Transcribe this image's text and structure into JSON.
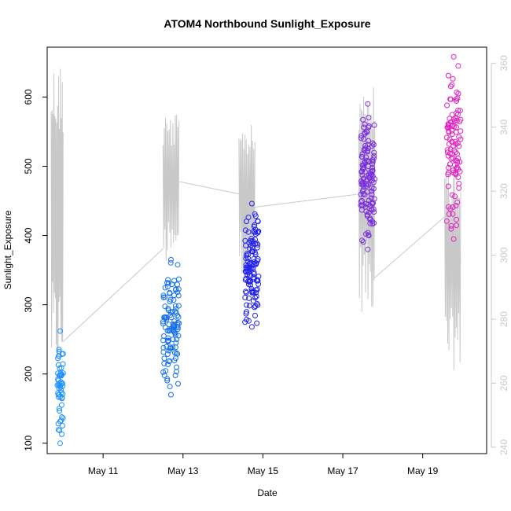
{
  "chart_data": {
    "type": "scatter",
    "title": "ATOM4 Northbound Sunlight_Exposure",
    "xlabel": "Date",
    "ylabel": "Sunlight_Exposure",
    "x_ticks": [
      {
        "day": 11,
        "label": "May 11"
      },
      {
        "day": 13,
        "label": "May 13"
      },
      {
        "day": 15,
        "label": "May 15"
      },
      {
        "day": 17,
        "label": "May 17"
      },
      {
        "day": 19,
        "label": "May 19"
      }
    ],
    "xlim": [
      9.6,
      20.6
    ],
    "ylim": [
      85,
      672
    ],
    "y_ticks": [
      100,
      200,
      300,
      400,
      500,
      600
    ],
    "secondary_axis": {
      "ylim": [
        238,
        365
      ],
      "ticks": [
        240,
        260,
        280,
        300,
        320,
        340,
        360
      ],
      "color": "#c8c8c8",
      "description": "grey trace on right axis"
    },
    "point_clusters": [
      {
        "name": "May 10",
        "x_range": [
          9.85,
          10.0
        ],
        "y_min": 100,
        "y_max": 262,
        "color": "#1E90FF",
        "count": 55
      },
      {
        "name": "May 12-13",
        "x_range": [
          12.5,
          12.9
        ],
        "y_min": 170,
        "y_max": 365,
        "color": "#1570EE",
        "count": 110
      },
      {
        "name": "May 14-15",
        "x_range": [
          14.55,
          14.9
        ],
        "y_min": 268,
        "y_max": 446,
        "color": "#2020F0",
        "count": 120
      },
      {
        "name": "May 17",
        "x_range": [
          17.45,
          17.8
        ],
        "y_min": 380,
        "y_max": 590,
        "color": "#7B2BE2",
        "count": 125
      },
      {
        "name": "May 19-20",
        "x_range": [
          19.6,
          19.95
        ],
        "y_min": 395,
        "y_max": 658,
        "color": "#E020C0",
        "count": 100
      }
    ],
    "grey_trace_segments": [
      {
        "x_range": [
          9.7,
          10.0
        ],
        "y2_min": 262,
        "y2_max": 361
      },
      {
        "x_range": [
          12.5,
          12.9
        ],
        "y2_min": 296,
        "y2_max": 345
      },
      {
        "x_range": [
          14.4,
          14.8
        ],
        "y2_min": 294,
        "y2_max": 341
      },
      {
        "x_range": [
          17.4,
          17.8
        ],
        "y2_min": 282,
        "y2_max": 357
      },
      {
        "x_range": [
          19.55,
          19.95
        ],
        "y2_min": 264,
        "y2_max": 329
      }
    ],
    "grey_trace_connectors": [
      {
        "from": [
          10.0,
          273
        ],
        "to": [
          12.5,
          302
        ]
      },
      {
        "from": [
          12.9,
          323
        ],
        "to": [
          14.45,
          319
        ]
      },
      {
        "from": [
          14.8,
          315
        ],
        "to": [
          17.35,
          319
        ]
      },
      {
        "from": [
          17.8,
          293
        ],
        "to": [
          19.55,
          312
        ]
      }
    ]
  }
}
